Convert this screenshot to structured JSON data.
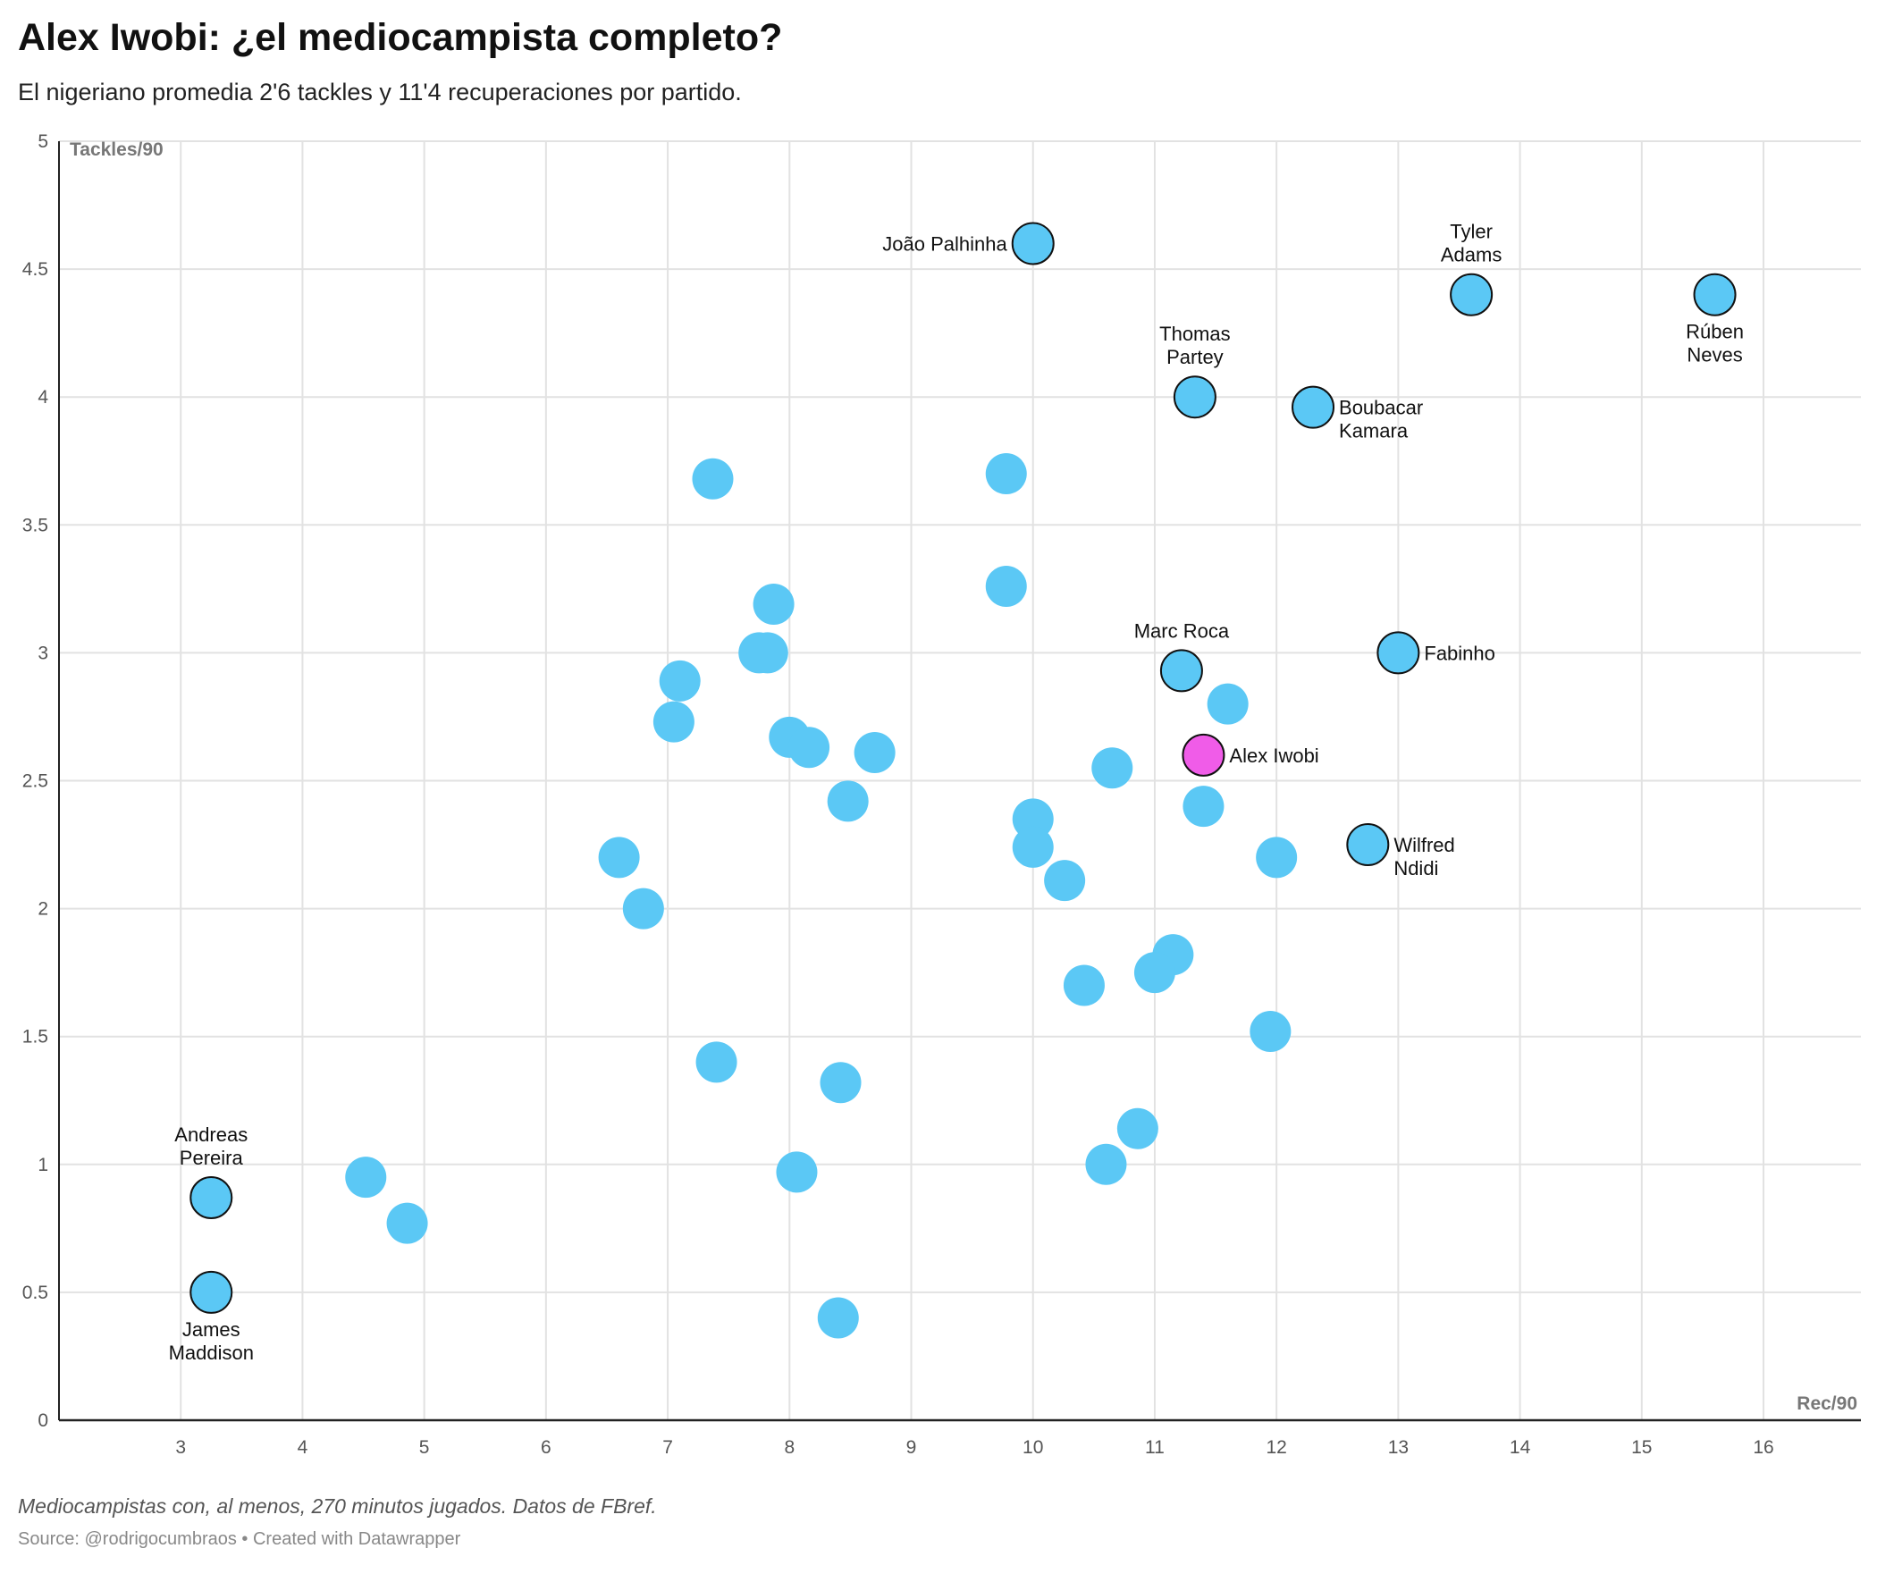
{
  "header": {
    "title": "Alex Iwobi: ¿el mediocampista completo?",
    "subtitle": "El nigeriano promedia 2'6 tackles y 11'4 recuperaciones por partido."
  },
  "footer": {
    "notes": "Mediocampistas con, al menos, 270 minutos jugados. Datos de FBref.",
    "source": "Source: @rodrigocumbraos • Created with Datawrapper"
  },
  "chart_data": {
    "type": "scatter",
    "xlabel": "Rec/90",
    "ylabel": "Tackles/90",
    "xlim": [
      2.0,
      16.8
    ],
    "ylim": [
      0,
      5
    ],
    "xticks": [
      3,
      4,
      5,
      6,
      7,
      8,
      9,
      10,
      11,
      12,
      13,
      14,
      15,
      16
    ],
    "yticks": [
      0,
      0.5,
      1,
      1.5,
      2,
      2.5,
      3,
      3.5,
      4,
      4.5,
      5
    ],
    "grid": true,
    "colors": {
      "default": "#5bc8f5",
      "highlight": "#f05ce8",
      "outline": "#111111",
      "grid": "#e2e2e2"
    },
    "points": [
      {
        "x": 10.0,
        "y": 4.6,
        "label": [
          "João Palhinha"
        ],
        "label_pos": "left",
        "outlined": true
      },
      {
        "x": 13.6,
        "y": 4.4,
        "label": [
          "Tyler",
          "Adams"
        ],
        "label_pos": "above",
        "outlined": true
      },
      {
        "x": 15.6,
        "y": 4.4,
        "label": [
          "Rúben",
          "Neves"
        ],
        "label_pos": "below",
        "outlined": true
      },
      {
        "x": 11.33,
        "y": 4.0,
        "label": [
          "Thomas",
          "Partey"
        ],
        "label_pos": "above",
        "outlined": true
      },
      {
        "x": 12.3,
        "y": 3.96,
        "label": [
          "Boubacar",
          "Kamara"
        ],
        "label_pos": "right-down",
        "outlined": true
      },
      {
        "x": 11.22,
        "y": 2.93,
        "label": [
          "Marc Roca"
        ],
        "label_pos": "above",
        "outlined": true
      },
      {
        "x": 13.0,
        "y": 3.0,
        "label": [
          "Fabinho"
        ],
        "label_pos": "right",
        "outlined": true
      },
      {
        "x": 11.4,
        "y": 2.6,
        "label": [
          "Alex Iwobi"
        ],
        "label_pos": "right",
        "outlined": true,
        "highlight": true
      },
      {
        "x": 12.75,
        "y": 2.25,
        "label": [
          "Wilfred",
          "Ndidi"
        ],
        "label_pos": "right-down",
        "outlined": true
      },
      {
        "x": 3.25,
        "y": 0.87,
        "label": [
          "Andreas",
          "Pereira"
        ],
        "label_pos": "above",
        "outlined": true
      },
      {
        "x": 3.25,
        "y": 0.5,
        "label": [
          "James",
          "Maddison"
        ],
        "label_pos": "below",
        "outlined": true
      },
      {
        "x": 7.37,
        "y": 3.68
      },
      {
        "x": 9.78,
        "y": 3.7
      },
      {
        "x": 9.78,
        "y": 3.26
      },
      {
        "x": 7.87,
        "y": 3.19
      },
      {
        "x": 7.75,
        "y": 3.0
      },
      {
        "x": 7.82,
        "y": 3.0
      },
      {
        "x": 7.1,
        "y": 2.89
      },
      {
        "x": 7.05,
        "y": 2.73
      },
      {
        "x": 8.0,
        "y": 2.67
      },
      {
        "x": 8.16,
        "y": 2.63
      },
      {
        "x": 8.7,
        "y": 2.61
      },
      {
        "x": 8.48,
        "y": 2.42
      },
      {
        "x": 10.65,
        "y": 2.55
      },
      {
        "x": 11.6,
        "y": 2.8
      },
      {
        "x": 11.4,
        "y": 2.4
      },
      {
        "x": 10.0,
        "y": 2.35
      },
      {
        "x": 10.0,
        "y": 2.24
      },
      {
        "x": 10.26,
        "y": 2.11
      },
      {
        "x": 6.6,
        "y": 2.2
      },
      {
        "x": 6.8,
        "y": 2.0
      },
      {
        "x": 12.0,
        "y": 2.2
      },
      {
        "x": 11.15,
        "y": 1.82
      },
      {
        "x": 11.0,
        "y": 1.75
      },
      {
        "x": 10.42,
        "y": 1.7
      },
      {
        "x": 11.95,
        "y": 1.52
      },
      {
        "x": 7.4,
        "y": 1.4
      },
      {
        "x": 8.42,
        "y": 1.32
      },
      {
        "x": 10.86,
        "y": 1.14
      },
      {
        "x": 10.6,
        "y": 1.0
      },
      {
        "x": 8.06,
        "y": 0.97
      },
      {
        "x": 4.52,
        "y": 0.95
      },
      {
        "x": 4.86,
        "y": 0.77
      },
      {
        "x": 8.4,
        "y": 0.4
      }
    ]
  }
}
